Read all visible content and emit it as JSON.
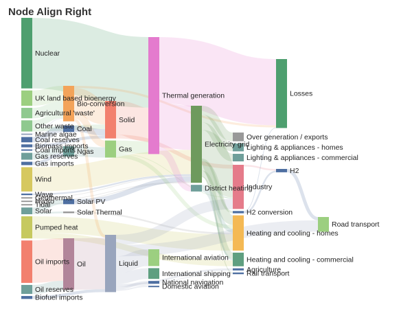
{
  "chart_data": {
    "type": "sankey",
    "title": "Node Align Right",
    "node_align": "right",
    "colors": {
      "nuclear": "#4e9f6f",
      "green": "#8fc98f",
      "lightgreen": "#9ccf80",
      "teal": "#6f9f9a",
      "blue": "#4e6fa1",
      "grey": "#999999",
      "yellow": "#d6c85f",
      "olive": "#c6c95f",
      "salmon": "#f2806e",
      "mauve": "#b2859a",
      "steel": "#99a5bd",
      "orange": "#f3a35a",
      "pink": "#e47bce",
      "darkgreen": "#6e9a5d",
      "red": "#e57b8a",
      "tealgreen": "#5f9f80",
      "gold": "#f4b954"
    },
    "nodes": [
      {
        "name": "Nuclear",
        "column": 0,
        "color": "nuclear"
      },
      {
        "name": "UK land based bioenergy",
        "column": 0,
        "color": "lightgreen"
      },
      {
        "name": "Agricultural 'waste'",
        "column": 0,
        "color": "green"
      },
      {
        "name": "Other waste",
        "column": 0,
        "color": "green"
      },
      {
        "name": "Marine algae",
        "column": 0,
        "color": "steel"
      },
      {
        "name": "Coal reserves",
        "column": 0,
        "color": "blue"
      },
      {
        "name": "Biomass imports",
        "column": 0,
        "color": "blue"
      },
      {
        "name": "Coal imports",
        "column": 0,
        "color": "blue"
      },
      {
        "name": "Gas reserves",
        "column": 0,
        "color": "teal"
      },
      {
        "name": "Gas imports",
        "column": 0,
        "color": "blue"
      },
      {
        "name": "Wind",
        "column": 0,
        "color": "yellow"
      },
      {
        "name": "Wave",
        "column": 0,
        "color": "blue"
      },
      {
        "name": "Geothermal",
        "column": 0,
        "color": "grey"
      },
      {
        "name": "Hydro",
        "column": 0,
        "color": "grey"
      },
      {
        "name": "Tidal",
        "column": 0,
        "color": "grey"
      },
      {
        "name": "Solar",
        "column": 0,
        "color": "teal"
      },
      {
        "name": "Pumped heat",
        "column": 0,
        "color": "olive"
      },
      {
        "name": "Oil imports",
        "column": 0,
        "color": "salmon"
      },
      {
        "name": "Oil reserves",
        "column": 0,
        "color": "teal"
      },
      {
        "name": "Biofuel imports",
        "column": 0,
        "color": "blue"
      },
      {
        "name": "Bio-conversion",
        "column": 1,
        "color": "orange"
      },
      {
        "name": "Coal",
        "column": 1,
        "color": "blue"
      },
      {
        "name": "Ngas",
        "column": 1,
        "color": "teal"
      },
      {
        "name": "Solar PV",
        "column": 1,
        "color": "blue"
      },
      {
        "name": "Solar Thermal",
        "column": 1,
        "color": "grey"
      },
      {
        "name": "Oil",
        "column": 1,
        "color": "mauve"
      },
      {
        "name": "Solid",
        "column": 2,
        "color": "salmon"
      },
      {
        "name": "Gas",
        "column": 2,
        "color": "lightgreen"
      },
      {
        "name": "Liquid",
        "column": 2,
        "color": "steel"
      },
      {
        "name": "Thermal generation",
        "column": 3,
        "color": "pink"
      },
      {
        "name": "International aviation",
        "column": 3,
        "color": "lightgreen"
      },
      {
        "name": "International shipping",
        "column": 3,
        "color": "tealgreen"
      },
      {
        "name": "National navigation",
        "column": 3,
        "color": "blue"
      },
      {
        "name": "Domestic aviation",
        "column": 3,
        "color": "blue"
      },
      {
        "name": "Electricity grid",
        "column": 4,
        "color": "darkgreen"
      },
      {
        "name": "District heating",
        "column": 4,
        "color": "teal"
      },
      {
        "name": "Over generation / exports",
        "column": 5,
        "color": "grey"
      },
      {
        "name": "Lighting & appliances - homes",
        "column": 5,
        "color": "teal"
      },
      {
        "name": "Lighting & appliances - commercial",
        "column": 5,
        "color": "teal"
      },
      {
        "name": "Industry",
        "column": 5,
        "color": "red"
      },
      {
        "name": "H2 conversion",
        "column": 5,
        "color": "blue"
      },
      {
        "name": "Heating and cooling - homes",
        "column": 5,
        "color": "gold"
      },
      {
        "name": "Heating and cooling - commercial",
        "column": 5,
        "color": "tealgreen"
      },
      {
        "name": "Agriculture",
        "column": 5,
        "color": "blue"
      },
      {
        "name": "Rail transport",
        "column": 5,
        "color": "blue"
      },
      {
        "name": "Losses",
        "column": 6,
        "color": "nuclear"
      },
      {
        "name": "H2",
        "column": 6,
        "color": "blue"
      },
      {
        "name": "Road transport",
        "column": 7,
        "color": "lightgreen"
      }
    ],
    "links": [
      {
        "source": "Nuclear",
        "target": "Thermal generation",
        "value": 839
      },
      {
        "source": "UK land based bioenergy",
        "target": "Bio-conversion",
        "value": 182
      },
      {
        "source": "Agricultural 'waste'",
        "target": "Bio-conversion",
        "value": 124
      },
      {
        "source": "Other waste",
        "target": "Bio-conversion",
        "value": 77
      },
      {
        "source": "Other waste",
        "target": "Solid",
        "value": 56
      },
      {
        "source": "Marine algae",
        "target": "Bio-conversion",
        "value": 4
      },
      {
        "source": "Coal reserves",
        "target": "Coal",
        "value": 63
      },
      {
        "source": "Biomass imports",
        "target": "Solid",
        "value": 35
      },
      {
        "source": "Coal imports",
        "target": "Coal",
        "value": 11
      },
      {
        "source": "Gas reserves",
        "target": "Ngas",
        "value": 82
      },
      {
        "source": "Gas imports",
        "target": "Ngas",
        "value": 40
      },
      {
        "source": "Wind",
        "target": "Electricity grid",
        "value": 289
      },
      {
        "source": "Wave",
        "target": "Electricity grid",
        "value": 19
      },
      {
        "source": "Geothermal",
        "target": "Electricity grid",
        "value": 7
      },
      {
        "source": "Hydro",
        "target": "Electricity grid",
        "value": 7
      },
      {
        "source": "Tidal",
        "target": "Electricity grid",
        "value": 9
      },
      {
        "source": "Solar",
        "target": "Solar PV",
        "value": 60
      },
      {
        "source": "Solar",
        "target": "Solar Thermal",
        "value": 20
      },
      {
        "source": "Pumped heat",
        "target": "Heating and cooling - homes",
        "value": 193
      },
      {
        "source": "Pumped heat",
        "target": "Heating and cooling - commercial",
        "value": 70
      },
      {
        "source": "Oil imports",
        "target": "Oil",
        "value": 504
      },
      {
        "source": "Oil reserves",
        "target": "Oil",
        "value": 107
      },
      {
        "source": "Biofuel imports",
        "target": "Liquid",
        "value": 35
      },
      {
        "source": "Bio-conversion",
        "target": "Solid",
        "value": 280
      },
      {
        "source": "Bio-conversion",
        "target": "Gas",
        "value": 81
      },
      {
        "source": "Bio-conversion",
        "target": "Liquid",
        "value": 35
      },
      {
        "source": "Bio-conversion",
        "target": "Losses",
        "value": 26
      },
      {
        "source": "Coal",
        "target": "Solid",
        "value": 75
      },
      {
        "source": "Ngas",
        "target": "Gas",
        "value": 122
      },
      {
        "source": "Solar PV",
        "target": "Electricity grid",
        "value": 60
      },
      {
        "source": "Solar Thermal",
        "target": "Heating and cooling - homes",
        "value": 20
      },
      {
        "source": "Oil",
        "target": "Liquid",
        "value": 611
      },
      {
        "source": "Solid",
        "target": "Thermal generation",
        "value": 400
      },
      {
        "source": "Solid",
        "target": "Industry",
        "value": 46
      },
      {
        "source": "Gas",
        "target": "Thermal generation",
        "value": 151
      },
      {
        "source": "Gas",
        "target": "Heating and cooling - homes",
        "value": 46
      },
      {
        "source": "Gas",
        "target": "Industry",
        "value": 6
      },
      {
        "source": "Liquid",
        "target": "International aviation",
        "value": 200
      },
      {
        "source": "Liquid",
        "target": "International shipping",
        "value": 128
      },
      {
        "source": "Liquid",
        "target": "National navigation",
        "value": 33
      },
      {
        "source": "Liquid",
        "target": "Domestic aviation",
        "value": 14
      },
      {
        "source": "Liquid",
        "target": "Road transport",
        "value": 135
      },
      {
        "source": "Liquid",
        "target": "Industry",
        "value": 121
      },
      {
        "source": "Liquid",
        "target": "Agriculture",
        "value": 25
      },
      {
        "source": "Liquid",
        "target": "Rail transport",
        "value": 10
      },
      {
        "source": "Thermal generation",
        "target": "Electricity grid",
        "value": 525
      },
      {
        "source": "Thermal generation",
        "target": "Losses",
        "value": 787
      },
      {
        "source": "Thermal generation",
        "target": "District heating",
        "value": 79
      },
      {
        "source": "Electricity grid",
        "target": "Over generation / exports",
        "value": 104
      },
      {
        "source": "Electricity grid",
        "target": "Lighting & appliances - homes",
        "value": 93
      },
      {
        "source": "Electricity grid",
        "target": "Lighting & appliances - commercial",
        "value": 90
      },
      {
        "source": "Electricity grid",
        "target": "Industry",
        "value": 342
      },
      {
        "source": "Electricity grid",
        "target": "H2 conversion",
        "value": 27
      },
      {
        "source": "Electricity grid",
        "target": "Heating and cooling - homes",
        "value": 113
      },
      {
        "source": "Electricity grid",
        "target": "Heating and cooling - commercial",
        "value": 70
      },
      {
        "source": "Electricity grid",
        "target": "Rail transport",
        "value": 10
      },
      {
        "source": "District heating",
        "target": "Industry",
        "value": 10
      },
      {
        "source": "District heating",
        "target": "Heating and cooling - commercial",
        "value": 22
      },
      {
        "source": "District heating",
        "target": "Heating and cooling - homes",
        "value": 47
      },
      {
        "source": "Industry",
        "target": "H2",
        "value": 20
      },
      {
        "source": "H2 conversion",
        "target": "H2",
        "value": 20
      },
      {
        "source": "H2 conversion",
        "target": "Losses",
        "value": 7
      },
      {
        "source": "H2",
        "target": "Road transport",
        "value": 40
      }
    ]
  }
}
